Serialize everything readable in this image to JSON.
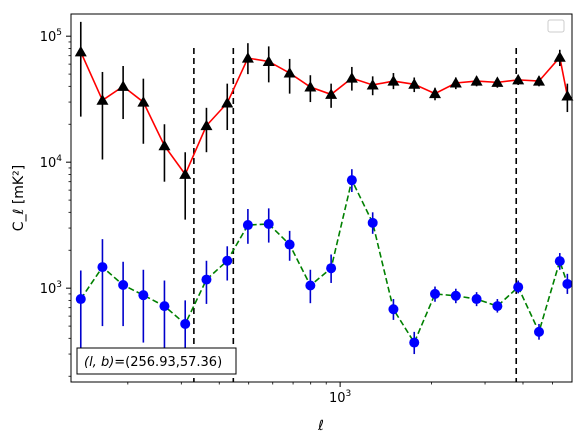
{
  "chart_data": {
    "type": "line",
    "title": "",
    "xlabel": "ℓ",
    "ylabel": "C_ℓ  [mK²]",
    "xscale": "log",
    "yscale": "log",
    "xlim": [
      130,
      5800
    ],
    "ylim": [
      180,
      150000
    ],
    "grid": false,
    "legend": {
      "placement": "top-right",
      "entries": []
    },
    "x_ticks": [
      {
        "value": 1000,
        "base": "10",
        "exp": "3"
      }
    ],
    "y_ticks": [
      {
        "value": 1000,
        "base": "10",
        "exp": "3"
      },
      {
        "value": 10000,
        "base": "10",
        "exp": "4"
      },
      {
        "value": 100000,
        "base": "10",
        "exp": "5"
      }
    ],
    "vlines": [
      330,
      445,
      3800
    ],
    "annotation": {
      "label": "(l, b)",
      "value": "=(256.93,57.36)"
    },
    "series": [
      {
        "color_line": "#ff0000",
        "color_marker": "#000000",
        "color_error": "#000000",
        "marker": "triangle",
        "linestyle": "solid",
        "points": [
          {
            "x": 140,
            "y": 75000,
            "ylo": 23000,
            "yhi": 130000
          },
          {
            "x": 165,
            "y": 31000,
            "ylo": 10500,
            "yhi": 52000
          },
          {
            "x": 193,
            "y": 40000,
            "ylo": 22000,
            "yhi": 58000
          },
          {
            "x": 225,
            "y": 30000,
            "ylo": 14000,
            "yhi": 46000
          },
          {
            "x": 264,
            "y": 13500,
            "ylo": 7000,
            "yhi": 20000
          },
          {
            "x": 309,
            "y": 8000,
            "ylo": 3500,
            "yhi": 12000
          },
          {
            "x": 363,
            "y": 19500,
            "ylo": 12000,
            "yhi": 27000
          },
          {
            "x": 425,
            "y": 29500,
            "ylo": 18000,
            "yhi": 42000
          },
          {
            "x": 497,
            "y": 67000,
            "ylo": 50000,
            "yhi": 88000
          },
          {
            "x": 582,
            "y": 63000,
            "ylo": 43000,
            "yhi": 83000
          },
          {
            "x": 682,
            "y": 51000,
            "ylo": 35000,
            "yhi": 66000
          },
          {
            "x": 798,
            "y": 39500,
            "ylo": 30000,
            "yhi": 49000
          },
          {
            "x": 934,
            "y": 34500,
            "ylo": 27000,
            "yhi": 42000
          },
          {
            "x": 1093,
            "y": 46500,
            "ylo": 37000,
            "yhi": 57000
          },
          {
            "x": 1280,
            "y": 41000,
            "ylo": 34000,
            "yhi": 48000
          },
          {
            "x": 1498,
            "y": 44000,
            "ylo": 38000,
            "yhi": 51000
          },
          {
            "x": 1754,
            "y": 41500,
            "ylo": 36000,
            "yhi": 47000
          },
          {
            "x": 2053,
            "y": 35000,
            "ylo": 31000,
            "yhi": 39000
          },
          {
            "x": 2404,
            "y": 42500,
            "ylo": 38000,
            "yhi": 47000
          },
          {
            "x": 2814,
            "y": 44000,
            "ylo": 40000,
            "yhi": 48000
          },
          {
            "x": 3294,
            "y": 43000,
            "ylo": 39000,
            "yhi": 46000
          },
          {
            "x": 3857,
            "y": 45000,
            "ylo": 41000,
            "yhi": 49000
          },
          {
            "x": 4516,
            "y": 44000,
            "ylo": 40000,
            "yhi": 48000
          },
          {
            "x": 5287,
            "y": 68000,
            "ylo": 58000,
            "yhi": 78000
          },
          {
            "x": 5600,
            "y": 33500,
            "ylo": 25000,
            "yhi": 42000
          }
        ]
      },
      {
        "color_line": "#008000",
        "color_marker": "#0000ff",
        "color_error": "#0000cc",
        "marker": "circle",
        "linestyle": "dashed",
        "points": [
          {
            "x": 140,
            "y": 820,
            "ylo": 330,
            "yhi": 1380
          },
          {
            "x": 165,
            "y": 1470,
            "ylo": 500,
            "yhi": 2450
          },
          {
            "x": 193,
            "y": 1060,
            "ylo": 500,
            "yhi": 1620
          },
          {
            "x": 225,
            "y": 880,
            "ylo": 370,
            "yhi": 1400
          },
          {
            "x": 264,
            "y": 720,
            "ylo": 300,
            "yhi": 1150
          },
          {
            "x": 309,
            "y": 520,
            "ylo": 250,
            "yhi": 800
          },
          {
            "x": 363,
            "y": 1170,
            "ylo": 750,
            "yhi": 1650
          },
          {
            "x": 425,
            "y": 1650,
            "ylo": 1150,
            "yhi": 2150
          },
          {
            "x": 497,
            "y": 3170,
            "ylo": 2250,
            "yhi": 4250
          },
          {
            "x": 582,
            "y": 3230,
            "ylo": 2300,
            "yhi": 4300
          },
          {
            "x": 682,
            "y": 2220,
            "ylo": 1650,
            "yhi": 2850
          },
          {
            "x": 798,
            "y": 1050,
            "ylo": 760,
            "yhi": 1400
          },
          {
            "x": 934,
            "y": 1440,
            "ylo": 1100,
            "yhi": 1850
          },
          {
            "x": 1093,
            "y": 7200,
            "ylo": 5800,
            "yhi": 8800
          },
          {
            "x": 1280,
            "y": 3300,
            "ylo": 2700,
            "yhi": 4000
          },
          {
            "x": 1498,
            "y": 680,
            "ylo": 560,
            "yhi": 820
          },
          {
            "x": 1754,
            "y": 370,
            "ylo": 300,
            "yhi": 450
          },
          {
            "x": 2053,
            "y": 900,
            "ylo": 780,
            "yhi": 1030
          },
          {
            "x": 2404,
            "y": 870,
            "ylo": 760,
            "yhi": 990
          },
          {
            "x": 2814,
            "y": 820,
            "ylo": 720,
            "yhi": 930
          },
          {
            "x": 3294,
            "y": 720,
            "ylo": 640,
            "yhi": 820
          },
          {
            "x": 3857,
            "y": 1020,
            "ylo": 910,
            "yhi": 1150
          },
          {
            "x": 4516,
            "y": 450,
            "ylo": 390,
            "yhi": 520
          },
          {
            "x": 5287,
            "y": 1640,
            "ylo": 1400,
            "yhi": 1900
          },
          {
            "x": 5600,
            "y": 1080,
            "ylo": 900,
            "yhi": 1300
          }
        ]
      }
    ]
  }
}
